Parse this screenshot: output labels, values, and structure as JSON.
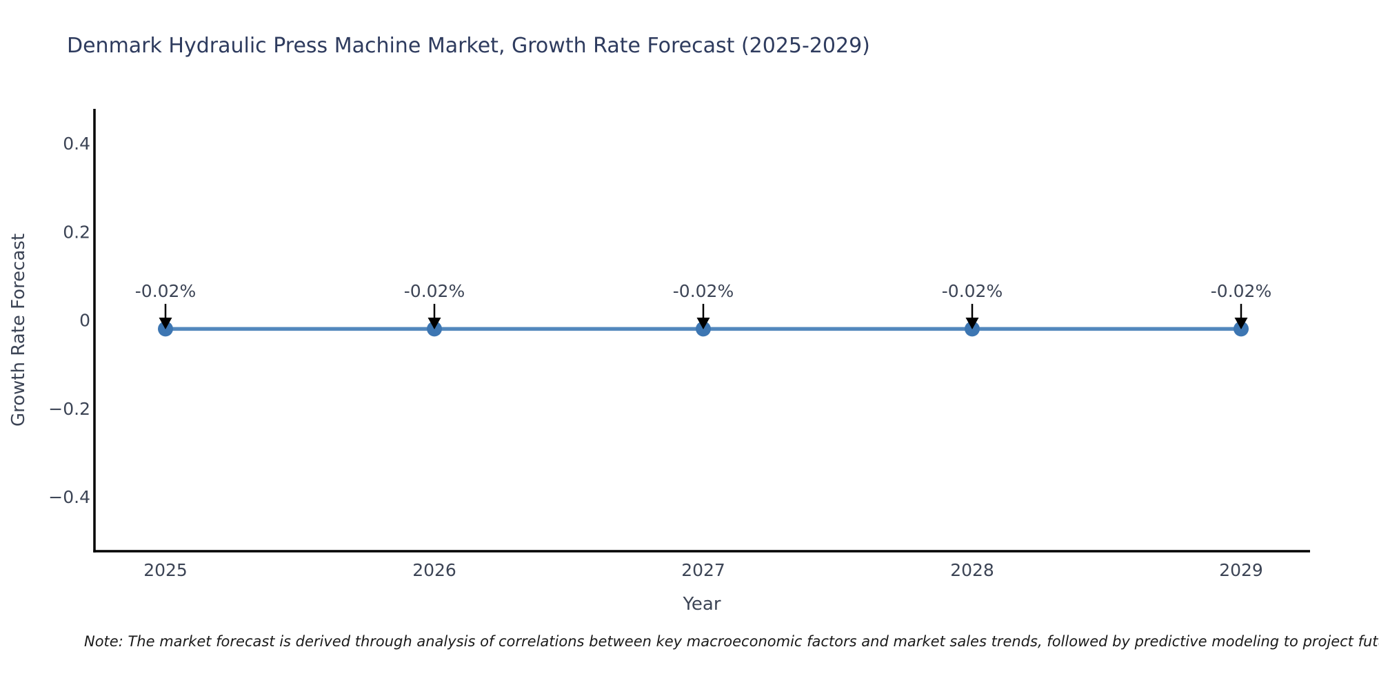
{
  "note": "Note: The market forecast is derived through analysis of correlations between key macroeconomic factors and market sales trends, followed by predictive modeling to project future sales.",
  "colors": {
    "background": "#ffffff",
    "title": "#2e3b5e",
    "axis_line": "#000000",
    "tick_label": "#3c4455",
    "axis_title": "#3c4455",
    "series_line": "#5388bd",
    "marker": "#3d76b2",
    "annotation_text": "#3c4455",
    "arrow": "#000000",
    "note_text": "#1a1a1a"
  },
  "chart_data": {
    "type": "line",
    "title": "Denmark Hydraulic Press Machine Market, Growth Rate Forecast (2025-2029)",
    "xlabel": "Year",
    "ylabel": "Growth Rate Forecast",
    "x": [
      2025,
      2026,
      2027,
      2028,
      2029
    ],
    "xticklabels": [
      "2025",
      "2026",
      "2027",
      "2028",
      "2029"
    ],
    "series": [
      {
        "name": "Growth Rate Forecast",
        "values": [
          -0.02,
          -0.02,
          -0.02,
          -0.02,
          -0.02
        ]
      }
    ],
    "point_labels": [
      "-0.02%",
      "-0.02%",
      "-0.02%",
      "-0.02%",
      "-0.02%"
    ],
    "yticks": [
      0.4,
      0.2,
      0,
      -0.2,
      -0.4
    ],
    "yticklabels": [
      "0.4",
      "0.2",
      "0",
      "−0.2",
      "−0.4"
    ],
    "ylim": [
      -0.52,
      0.48
    ],
    "xlim": [
      2024.73,
      2029.26
    ],
    "grid": false,
    "legend": false,
    "marker_style": "circle",
    "annotation_style": "value label with downward black arrow above each point"
  }
}
